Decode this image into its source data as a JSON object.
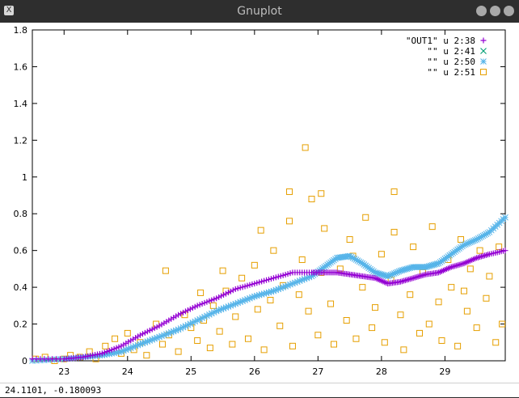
{
  "window": {
    "title": "Gnuplot",
    "app_icon": "X",
    "status": "24.1101, -0.180093"
  },
  "colors": {
    "titlebar": "#2e2e2e",
    "s38": "#9400d3",
    "s41": "#009e73",
    "s50": "#56b4e9",
    "s51": "#e69f00"
  },
  "chart_data": {
    "type": "scatter",
    "title": "",
    "xlabel": "",
    "ylabel": "",
    "xlim": [
      22.5,
      29.95
    ],
    "ylim": [
      0,
      1.8
    ],
    "xticks": [
      "23",
      "24",
      "25",
      "26",
      "27",
      "28",
      "29"
    ],
    "yticks": [
      "0",
      "0.2",
      "0.4",
      "0.6",
      "0.8",
      "1",
      "1.2",
      "1.4",
      "1.6",
      "1.8"
    ],
    "legend_position": "top-right",
    "series": [
      {
        "name": "\"OUT1\" u 2:38",
        "marker": "plus",
        "color": "#9400d3",
        "x": [
          22.5,
          23.0,
          23.3,
          23.6,
          23.9,
          24.2,
          24.5,
          24.8,
          25.1,
          25.4,
          25.7,
          26.0,
          26.3,
          26.6,
          26.9,
          27.1,
          27.3,
          27.5,
          27.7,
          27.9,
          28.1,
          28.3,
          28.5,
          28.7,
          28.9,
          29.1,
          29.3,
          29.5,
          29.7,
          29.95
        ],
        "y": [
          0.01,
          0.01,
          0.02,
          0.04,
          0.08,
          0.14,
          0.19,
          0.25,
          0.3,
          0.34,
          0.39,
          0.42,
          0.45,
          0.48,
          0.48,
          0.48,
          0.48,
          0.47,
          0.46,
          0.45,
          0.42,
          0.43,
          0.45,
          0.47,
          0.48,
          0.51,
          0.53,
          0.56,
          0.58,
          0.6
        ]
      },
      {
        "name": "\"\" u 2:41",
        "marker": "cross",
        "color": "#009e73",
        "x": [],
        "y": []
      },
      {
        "name": "\"\" u 2:50",
        "marker": "asterisk",
        "color": "#56b4e9",
        "x": [
          22.5,
          23.0,
          23.3,
          23.6,
          23.9,
          24.2,
          24.5,
          24.8,
          25.1,
          25.4,
          25.7,
          26.0,
          26.3,
          26.6,
          26.9,
          27.1,
          27.3,
          27.5,
          27.7,
          27.9,
          28.1,
          28.3,
          28.5,
          28.7,
          28.9,
          29.1,
          29.3,
          29.5,
          29.7,
          29.95
        ],
        "y": [
          0.0,
          0.01,
          0.02,
          0.03,
          0.05,
          0.09,
          0.13,
          0.17,
          0.22,
          0.27,
          0.31,
          0.35,
          0.38,
          0.42,
          0.46,
          0.51,
          0.56,
          0.57,
          0.53,
          0.48,
          0.46,
          0.49,
          0.51,
          0.51,
          0.53,
          0.58,
          0.63,
          0.66,
          0.7,
          0.78
        ]
      },
      {
        "name": "\"\" u 2:51",
        "marker": "square",
        "color": "#e69f00",
        "x": [
          22.55,
          22.7,
          22.85,
          23.0,
          23.1,
          23.25,
          23.4,
          23.5,
          23.65,
          23.8,
          23.9,
          24.0,
          24.1,
          24.2,
          24.3,
          24.45,
          24.55,
          24.65,
          24.8,
          24.9,
          25.0,
          25.1,
          25.2,
          25.3,
          25.35,
          25.45,
          25.55,
          25.65,
          25.7,
          25.8,
          25.9,
          26.0,
          26.05,
          26.15,
          26.25,
          26.3,
          26.4,
          26.45,
          26.55,
          26.6,
          26.7,
          26.75,
          26.85,
          26.9,
          27.0,
          27.05,
          27.1,
          27.2,
          27.25,
          27.35,
          27.45,
          27.5,
          27.6,
          27.7,
          27.75,
          27.85,
          27.9,
          28.0,
          28.05,
          28.15,
          28.2,
          28.3,
          28.35,
          28.45,
          28.5,
          28.6,
          28.65,
          28.75,
          28.8,
          28.9,
          28.95,
          29.05,
          29.1,
          29.2,
          29.25,
          29.35,
          29.4,
          29.5,
          29.55,
          29.65,
          29.7,
          29.8,
          29.85,
          29.9,
          26.8,
          27.05,
          26.55,
          28.2,
          25.5,
          26.1,
          27.55,
          24.6,
          25.15,
          29.3
        ],
        "y": [
          0.01,
          0.02,
          0.0,
          0.01,
          0.03,
          0.02,
          0.05,
          0.01,
          0.08,
          0.12,
          0.04,
          0.15,
          0.06,
          0.1,
          0.03,
          0.2,
          0.09,
          0.14,
          0.05,
          0.25,
          0.18,
          0.11,
          0.22,
          0.07,
          0.3,
          0.16,
          0.38,
          0.09,
          0.24,
          0.45,
          0.12,
          0.52,
          0.28,
          0.06,
          0.33,
          0.6,
          0.19,
          0.41,
          0.76,
          0.08,
          0.36,
          0.55,
          0.27,
          0.88,
          0.14,
          0.48,
          0.72,
          0.31,
          0.09,
          0.5,
          0.22,
          0.66,
          0.12,
          0.4,
          0.78,
          0.18,
          0.29,
          0.58,
          0.1,
          0.44,
          0.7,
          0.25,
          0.06,
          0.36,
          0.62,
          0.15,
          0.48,
          0.2,
          0.73,
          0.32,
          0.11,
          0.55,
          0.4,
          0.08,
          0.66,
          0.27,
          0.5,
          0.18,
          0.6,
          0.34,
          0.46,
          0.1,
          0.62,
          0.2,
          1.16,
          0.91,
          0.92,
          0.92,
          0.49,
          0.71,
          0.57,
          0.49,
          0.37,
          0.38
        ]
      }
    ]
  }
}
